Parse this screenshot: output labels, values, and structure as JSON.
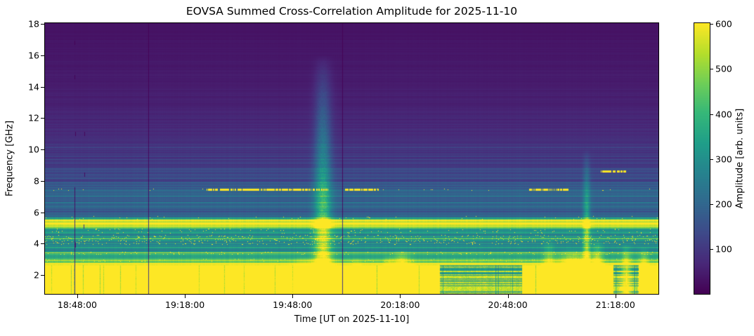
{
  "chart_data": {
    "type": "heatmap",
    "title": "EOVSA Summed Cross-Correlation Amplitude for 2025-11-10",
    "xlabel": "Time [UT on 2025-11-10]",
    "ylabel": "Frequency [GHz]",
    "colorbar_label": "Amplitude [arb. units]",
    "colormap": "viridis",
    "colormap_stops": [
      "#440154",
      "#482878",
      "#3e4989",
      "#31688e",
      "#26828e",
      "#1f9e89",
      "#35b779",
      "#6ece58",
      "#b5de2b",
      "#fde725"
    ],
    "x_axis": {
      "start_time_ut": "18:39:00",
      "end_time_ut": "21:30:00",
      "ticks": [
        {
          "label": "18:48:00",
          "time": "18:48:00"
        },
        {
          "label": "19:18:00",
          "time": "19:18:00"
        },
        {
          "label": "19:48:00",
          "time": "19:48:00"
        },
        {
          "label": "20:18:00",
          "time": "20:18:00"
        },
        {
          "label": "20:48:00",
          "time": "20:48:00"
        },
        {
          "label": "21:18:00",
          "time": "21:18:00"
        }
      ]
    },
    "y_axis": {
      "top_ghz": 18.05,
      "bottom_ghz": 0.8,
      "ticks": [
        2,
        4,
        6,
        8,
        10,
        12,
        14,
        16,
        18
      ]
    },
    "colorbar": {
      "min": 0,
      "max": 602,
      "ticks": [
        100,
        200,
        300,
        400,
        500,
        600
      ]
    },
    "amplitude_vmax": 600,
    "background_spectrum_ghz_amp": [
      [
        0.8,
        690
      ],
      [
        2.55,
        690
      ],
      [
        2.7,
        650
      ],
      [
        2.85,
        520
      ],
      [
        3.0,
        400
      ],
      [
        3.15,
        350
      ],
      [
        3.28,
        360
      ],
      [
        3.4,
        480
      ],
      [
        3.5,
        340
      ],
      [
        3.62,
        258
      ],
      [
        3.75,
        330
      ],
      [
        3.9,
        322
      ],
      [
        4.02,
        300
      ],
      [
        4.15,
        340
      ],
      [
        4.3,
        372
      ],
      [
        4.45,
        340
      ],
      [
        4.55,
        238
      ],
      [
        4.68,
        300
      ],
      [
        4.85,
        335
      ],
      [
        5.0,
        390
      ],
      [
        5.12,
        630
      ],
      [
        5.5,
        630
      ],
      [
        5.6,
        340
      ],
      [
        5.78,
        185
      ],
      [
        6.1,
        168
      ],
      [
        6.35,
        188
      ],
      [
        6.62,
        212
      ],
      [
        6.9,
        202
      ],
      [
        7.2,
        190
      ],
      [
        7.5,
        172
      ],
      [
        7.8,
        158
      ],
      [
        8.2,
        142
      ],
      [
        8.6,
        127
      ],
      [
        9.0,
        113
      ],
      [
        9.5,
        101
      ],
      [
        10.0,
        91
      ],
      [
        10.5,
        83
      ],
      [
        11.0,
        75
      ],
      [
        12.0,
        63
      ],
      [
        13.0,
        54
      ],
      [
        14.0,
        47
      ],
      [
        15.0,
        42
      ],
      [
        16.0,
        38
      ],
      [
        17.0,
        34
      ],
      [
        18.05,
        31
      ]
    ],
    "saturated_band_ghz": [
      0.8,
      2.62
    ],
    "bursts": [
      {
        "time": "19:56:30",
        "sigma_min": 1.6,
        "f_max_ghz": 16.0,
        "amp": 330
      },
      {
        "time": "19:52:00",
        "sigma_min": 2.5,
        "f_max_ghz": 3.2,
        "amp": 260
      },
      {
        "time": "20:06:00",
        "sigma_min": 1.0,
        "f_max_ghz": 3.1,
        "amp": 200
      },
      {
        "time": "20:15:00",
        "sigma_min": 1.0,
        "f_max_ghz": 3.3,
        "amp": 260
      },
      {
        "time": "20:18:30",
        "sigma_min": 1.6,
        "f_max_ghz": 3.6,
        "amp": 420
      },
      {
        "time": "20:59:30",
        "sigma_min": 1.0,
        "f_max_ghz": 4.3,
        "amp": 260
      },
      {
        "time": "21:06:30",
        "sigma_min": 3.2,
        "f_max_ghz": 3.7,
        "amp": 520
      },
      {
        "time": "21:10:00",
        "sigma_min": 0.7,
        "f_max_ghz": 10.0,
        "amp": 300
      },
      {
        "time": "21:13:00",
        "sigma_min": 1.0,
        "f_max_ghz": 4.3,
        "amp": 380
      },
      {
        "time": "21:21:00",
        "sigma_min": 0.8,
        "f_max_ghz": 4.0,
        "amp": 330
      },
      {
        "time": "21:26:00",
        "sigma_min": 0.8,
        "f_max_ghz": 3.8,
        "amp": 300
      }
    ],
    "flagged_columns": [
      {
        "time": "18:47:15",
        "f_lo_ghz": 0.8,
        "f_hi_ghz": 7.6
      },
      {
        "time": "19:07:48",
        "f_lo_ghz": 0.8,
        "f_hi_ghz": 18.05
      },
      {
        "time": "20:01:50",
        "f_lo_ghz": 0.8,
        "f_hi_ghz": 18.05
      }
    ],
    "flagged_dashes": [
      {
        "time": "18:47:15",
        "f_ghz": 16.8
      },
      {
        "time": "18:47:10",
        "f_ghz": 14.6
      },
      {
        "time": "18:47:20",
        "f_ghz": 11.0
      },
      {
        "time": "18:49:55",
        "f_ghz": 11.0
      },
      {
        "time": "18:49:58",
        "f_ghz": 8.4
      },
      {
        "time": "18:49:50",
        "f_ghz": 5.1
      },
      {
        "time": "18:47:30",
        "f_ghz": 3.9
      }
    ],
    "rfi_bright_lines": [
      {
        "f_ghz": 7.42,
        "coverage": 0.8,
        "segments_ut": [
          [
            "19:24:00",
            "19:58:00"
          ],
          [
            "20:02:00",
            "20:12:00"
          ],
          [
            "20:54:00",
            "21:05:00"
          ]
        ]
      },
      {
        "f_ghz": 8.6,
        "coverage": 0.7,
        "segments_ut": [
          [
            "21:14:00",
            "21:21:00"
          ]
        ]
      }
    ],
    "speckle_bands": [
      {
        "f_lo": 3.95,
        "f_hi": 4.55,
        "density": 0.05
      },
      {
        "f_lo": 3.3,
        "f_hi": 3.5,
        "density": 0.05
      },
      {
        "f_lo": 2.85,
        "f_hi": 3.05,
        "density": 0.03
      },
      {
        "f_lo": 4.65,
        "f_hi": 4.95,
        "density": 0.02
      },
      {
        "f_lo": 7.35,
        "f_hi": 7.5,
        "density": 0.012
      },
      {
        "f_lo": 5.55,
        "f_hi": 5.75,
        "density": 0.01
      }
    ],
    "quiet_dips": [
      {
        "start": "20:29:00",
        "end": "20:52:00",
        "factor": 0.82
      },
      {
        "start": "21:17:30",
        "end": "21:24:30",
        "factor": 0.85
      }
    ]
  }
}
